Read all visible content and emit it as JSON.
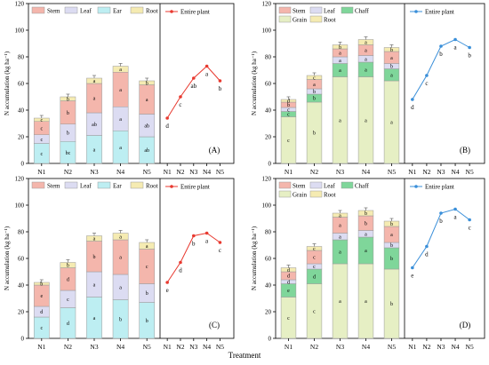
{
  "figure": {
    "xlabel": "Treatment"
  },
  "colors": {
    "stem": "#f4b6ac",
    "leaf": "#dcdcf2",
    "ear": "#bdeef2",
    "root": "#f5ebb2",
    "chaff": "#7fd69a",
    "grain": "#e6efc4",
    "line_ac": "#e8392f",
    "line_bd": "#3a8fd9",
    "edge": "#9a9a9a"
  },
  "chart_data": [
    {
      "panel": "(A)",
      "type": "bar",
      "stacked": true,
      "categories": [
        "N1",
        "N2",
        "N3",
        "N4",
        "N5"
      ],
      "ylabel": "N accumulation (kg ha⁻¹)",
      "ylim": [
        0,
        120
      ],
      "yticks": [
        0,
        20,
        40,
        60,
        80,
        100,
        120
      ],
      "series": [
        {
          "name": "Ear",
          "key": "ear",
          "values": [
            15,
            16.5,
            21,
            24.5,
            20
          ],
          "letters": [
            "c",
            "bc",
            "a",
            "a",
            "ab"
          ]
        },
        {
          "name": "Leaf",
          "key": "leaf",
          "values": [
            6.5,
            13,
            17,
            18,
            17
          ],
          "letters": [
            "c",
            "b",
            "ab",
            "a",
            "ab"
          ]
        },
        {
          "name": "Stem",
          "key": "stem",
          "values": [
            10,
            17.5,
            22,
            26,
            22
          ],
          "letters": [
            "c",
            "b",
            "a",
            "a",
            "a"
          ]
        },
        {
          "name": "Root",
          "key": "root",
          "values": [
            2.5,
            3,
            4,
            4.5,
            3
          ],
          "letters": [
            "c",
            "b",
            "a",
            "a",
            "b"
          ]
        }
      ],
      "line": {
        "name": "Entire plant",
        "values": [
          34,
          50,
          64,
          73,
          62
        ],
        "letters": [
          "d",
          "c",
          "ab",
          "a",
          "b"
        ]
      }
    },
    {
      "panel": "(B)",
      "type": "bar",
      "stacked": true,
      "categories": [
        "N1",
        "N2",
        "N3",
        "N4",
        "N5"
      ],
      "ylabel": "N accumulation (kg ha⁻¹)",
      "ylim": [
        0,
        120
      ],
      "yticks": [
        0,
        20,
        40,
        60,
        80,
        100,
        120
      ],
      "series": [
        {
          "name": "Grain",
          "key": "grain",
          "values": [
            35,
            46,
            65,
            65,
            62
          ],
          "letters": [
            "c",
            "b",
            "a",
            "a",
            "a"
          ]
        },
        {
          "name": "Chaff",
          "key": "chaff",
          "values": [
            4,
            6,
            10,
            11,
            9
          ],
          "letters": [
            "c",
            "b",
            "a",
            "a",
            "a"
          ]
        },
        {
          "name": "Leaf",
          "key": "leaf",
          "values": [
            3,
            4,
            5,
            5,
            4
          ],
          "letters": [
            "c",
            "b",
            "a",
            "a",
            "b"
          ]
        },
        {
          "name": "Stem",
          "key": "stem",
          "values": [
            4,
            7,
            6,
            8,
            9
          ],
          "letters": [
            "b",
            "a",
            "a",
            "a",
            "a"
          ]
        },
        {
          "name": "Root",
          "key": "root",
          "values": [
            2,
            3,
            3,
            4,
            3
          ],
          "letters": [
            "d",
            "c",
            "b",
            "a",
            "b"
          ]
        }
      ],
      "line": {
        "name": "Entire plant",
        "values": [
          48,
          66,
          88,
          93,
          87
        ],
        "letters": [
          "d",
          "c",
          "b",
          "a",
          "b"
        ]
      }
    },
    {
      "panel": "(C)",
      "type": "bar",
      "stacked": true,
      "categories": [
        "N1",
        "N2",
        "N3",
        "N4",
        "N5"
      ],
      "ylabel": "N accumulation (kg ha⁻¹)",
      "ylim": [
        0,
        120
      ],
      "yticks": [
        0,
        20,
        40,
        60,
        80,
        100,
        120
      ],
      "series": [
        {
          "name": "Ear",
          "key": "ear",
          "values": [
            16,
            23,
            31,
            29,
            27
          ],
          "letters": [
            "c",
            "d",
            "a",
            "b",
            "b"
          ]
        },
        {
          "name": "Leaf",
          "key": "leaf",
          "values": [
            8,
            13,
            19,
            19,
            14
          ],
          "letters": [
            "d",
            "c",
            "a",
            "a",
            "b"
          ]
        },
        {
          "name": "Stem",
          "key": "stem",
          "values": [
            16,
            17,
            23,
            26,
            26
          ],
          "letters": [
            "e",
            "d",
            "b",
            "a",
            "c"
          ]
        },
        {
          "name": "Root",
          "key": "root",
          "values": [
            2,
            4,
            4,
            5,
            5
          ],
          "letters": [
            "b",
            "b",
            "a",
            "a",
            "a"
          ]
        }
      ],
      "line": {
        "name": "Entire plant",
        "values": [
          42,
          57,
          77,
          79,
          72
        ],
        "letters": [
          "e",
          "d",
          "b",
          "a",
          "c"
        ]
      }
    },
    {
      "panel": "(D)",
      "type": "bar",
      "stacked": true,
      "categories": [
        "N1",
        "N2",
        "N3",
        "N4",
        "N5"
      ],
      "ylabel": "N accumulation (kg ha⁻¹)",
      "ylim": [
        0,
        120
      ],
      "yticks": [
        0,
        20,
        40,
        60,
        80,
        100,
        120
      ],
      "series": [
        {
          "name": "Grain",
          "key": "grain",
          "values": [
            31,
            41,
            56,
            56,
            52
          ],
          "letters": [
            "c",
            "c",
            "a",
            "a",
            "b"
          ]
        },
        {
          "name": "Chaff",
          "key": "chaff",
          "values": [
            10,
            11,
            18,
            20,
            16
          ],
          "letters": [
            "e",
            "d",
            "a",
            "a",
            "b"
          ]
        },
        {
          "name": "Leaf",
          "key": "leaf",
          "values": [
            3,
            4,
            5,
            5,
            4
          ],
          "letters": [
            "d",
            "c",
            "a",
            "a",
            "b"
          ]
        },
        {
          "name": "Stem",
          "key": "stem",
          "values": [
            6,
            10,
            12,
            11,
            12
          ],
          "letters": [
            "d",
            "c",
            "a",
            "b",
            "a"
          ]
        },
        {
          "name": "Root",
          "key": "root",
          "values": [
            3,
            3,
            3,
            4,
            4
          ],
          "letters": [
            "d",
            "c",
            "a",
            "b",
            "b"
          ]
        }
      ],
      "line": {
        "name": "Entire plant",
        "values": [
          53,
          69,
          94,
          97,
          89
        ],
        "letters": [
          "e",
          "d",
          "b",
          "a",
          "c"
        ]
      }
    }
  ]
}
